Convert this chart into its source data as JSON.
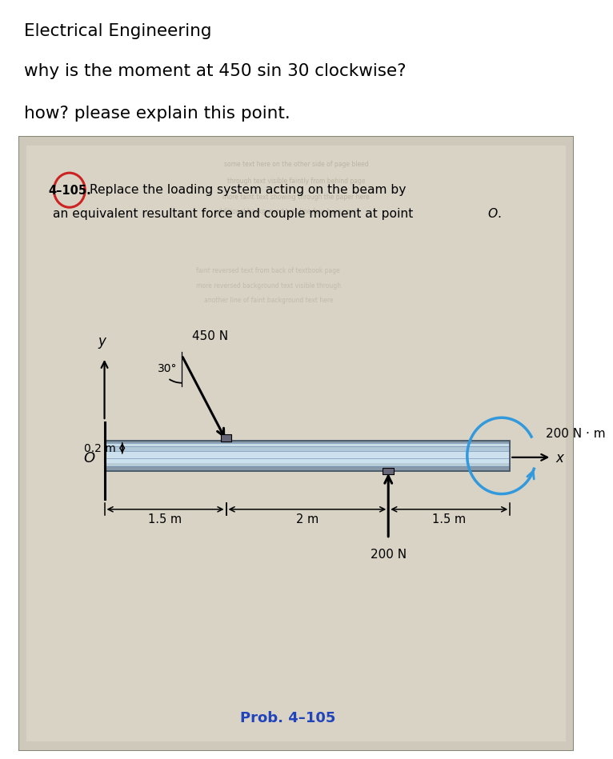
{
  "page_bg": "#ffffff",
  "diagram_bg": "#ddd8cc",
  "header_lines": [
    "Electrical Engineering",
    "why is the moment at 450 sin 30 clockwise?",
    "how? please explain this point."
  ],
  "header_fontsize": 15.5,
  "problem_label": "4–105.",
  "dist_1": "1.5 m",
  "dist_2": "2 m",
  "dist_3": "1.5 m",
  "force_450": "450 N",
  "force_200": "200 N",
  "moment_200": "200 N · m",
  "angle_30": "30°",
  "label_O": "O",
  "label_y": "y",
  "label_x": "x",
  "label_02m": "0.2 m",
  "prob_label": "Prob. 4–105",
  "moment_arrow_color": "#3399dd",
  "beam_blue": "#7aaecc"
}
